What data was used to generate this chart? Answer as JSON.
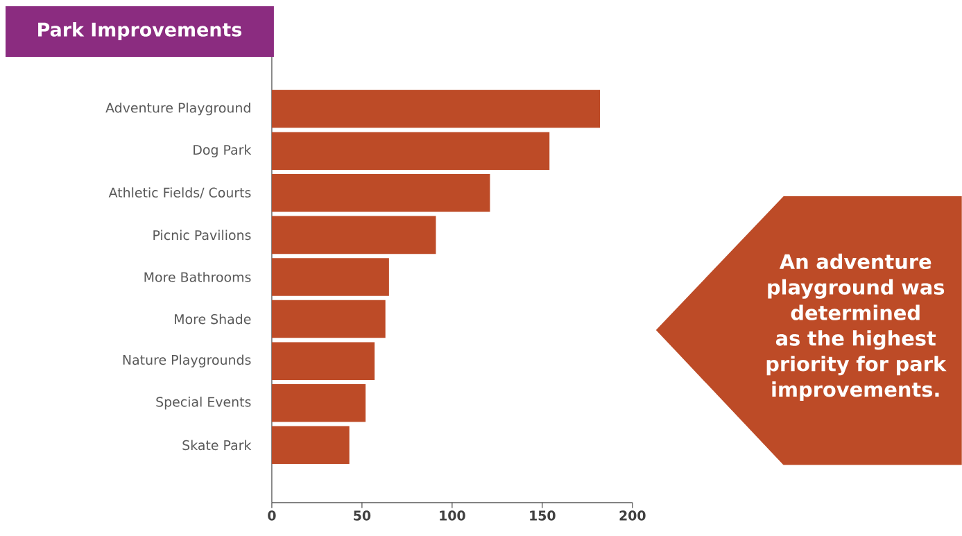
{
  "chart_data": {
    "type": "bar",
    "orientation": "horizontal",
    "title": "Park Improvements",
    "categories": [
      "Adventure Playground",
      "Dog Park",
      "Athletic Fields/ Courts",
      "Picnic Pavilions",
      "More Bathrooms",
      "More Shade",
      "Nature Playgrounds",
      "Special Events",
      "Skate Park"
    ],
    "values": [
      182,
      154,
      121,
      91,
      65,
      63,
      57,
      52,
      43
    ],
    "color": "#bd4b27",
    "xlim": [
      0,
      200
    ],
    "xticks": [
      0,
      50,
      100,
      150,
      200
    ],
    "annotations": [
      "An adventure playground was determined as the highest priority for park improvements."
    ]
  }
}
